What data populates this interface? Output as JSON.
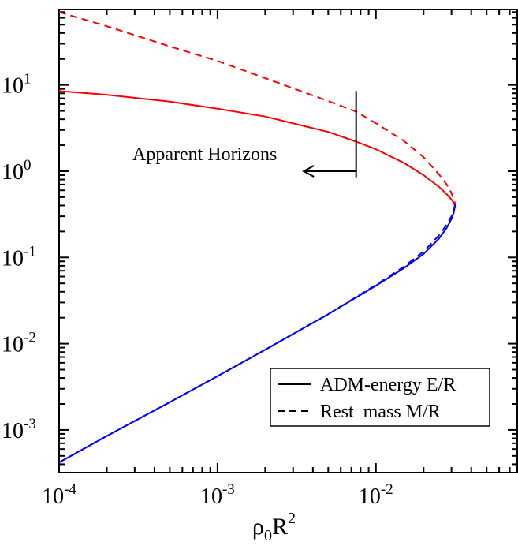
{
  "chart_data": {
    "type": "line",
    "xscale": "log",
    "yscale": "log",
    "xlim": [
      0.0001,
      0.078
    ],
    "ylim": [
      0.00032,
      75
    ],
    "grid": false,
    "xlabel": {
      "base": "ρ",
      "sub": "0",
      "main": "R",
      "sup": "2"
    },
    "ylabel": "",
    "x_ticks": [
      {
        "value": 0.0001,
        "base": "10",
        "exp": "-4"
      },
      {
        "value": 0.001,
        "base": "10",
        "exp": "-3"
      },
      {
        "value": 0.01,
        "base": "10",
        "exp": "-2"
      }
    ],
    "y_ticks": [
      {
        "value": 0.001,
        "base": "10",
        "exp": "-3"
      },
      {
        "value": 0.01,
        "base": "10",
        "exp": "-2"
      },
      {
        "value": 0.1,
        "base": "10",
        "exp": "-1"
      },
      {
        "value": 1,
        "base": "10",
        "exp": "0"
      },
      {
        "value": 10,
        "base": "10",
        "exp": "1"
      }
    ],
    "series": [
      {
        "name": "ADM-energy E/R",
        "branch": "upper",
        "color": "#ff0000",
        "dash": "solid",
        "x": [
          0.0001,
          0.0002,
          0.0005,
          0.001,
          0.002,
          0.005,
          0.0075,
          0.01,
          0.015,
          0.02,
          0.025,
          0.028,
          0.03,
          0.031,
          0.0316
        ],
        "y": [
          8.5,
          7.7,
          6.4,
          5.3,
          4.3,
          2.85,
          2.2,
          1.8,
          1.25,
          0.9,
          0.66,
          0.54,
          0.47,
          0.43,
          0.4
        ]
      },
      {
        "name": "Rest  mass M/R",
        "branch": "upper",
        "color": "#ff0000",
        "dash": "dashed",
        "x": [
          0.0001,
          0.0002,
          0.0005,
          0.001,
          0.002,
          0.005,
          0.0075,
          0.01,
          0.015,
          0.02,
          0.025,
          0.028,
          0.03,
          0.031,
          0.0316
        ],
        "y": [
          70,
          48,
          28,
          19,
          12,
          6.5,
          4.9,
          3.6,
          2.25,
          1.45,
          0.92,
          0.7,
          0.56,
          0.47,
          0.42
        ]
      },
      {
        "name": "ADM-energy E/R",
        "branch": "lower",
        "color": "#0000ff",
        "dash": "solid",
        "x": [
          0.0001,
          0.0002,
          0.0005,
          0.001,
          0.002,
          0.005,
          0.01,
          0.015,
          0.02,
          0.025,
          0.028,
          0.03,
          0.031,
          0.0316
        ],
        "y": [
          0.00042,
          0.00085,
          0.0021,
          0.0042,
          0.0085,
          0.022,
          0.047,
          0.075,
          0.11,
          0.165,
          0.22,
          0.28,
          0.33,
          0.4
        ]
      },
      {
        "name": "Rest  mass M/R",
        "branch": "lower",
        "color": "#0000ff",
        "dash": "dashed",
        "x": [
          0.0001,
          0.0002,
          0.0005,
          0.001,
          0.002,
          0.005,
          0.01,
          0.015,
          0.02,
          0.025,
          0.028,
          0.03,
          0.031,
          0.0316
        ],
        "y": [
          0.00042,
          0.00085,
          0.0021,
          0.0042,
          0.0085,
          0.022,
          0.048,
          0.078,
          0.117,
          0.18,
          0.24,
          0.3,
          0.35,
          0.42
        ]
      }
    ],
    "annotation": {
      "text": "Apparent Horizons",
      "marker_x": 0.0075,
      "marker_y_range": [
        0.85,
        8.5
      ],
      "arrow_from_x": 0.0075,
      "arrow_to_x": 0.0035,
      "arrow_y": 1.0
    },
    "legend": {
      "placement": "bottom-right",
      "entries": [
        {
          "label": "ADM-energy E/R",
          "dash": "solid"
        },
        {
          "label": "Rest  mass M/R",
          "dash": "dashed"
        }
      ]
    }
  }
}
